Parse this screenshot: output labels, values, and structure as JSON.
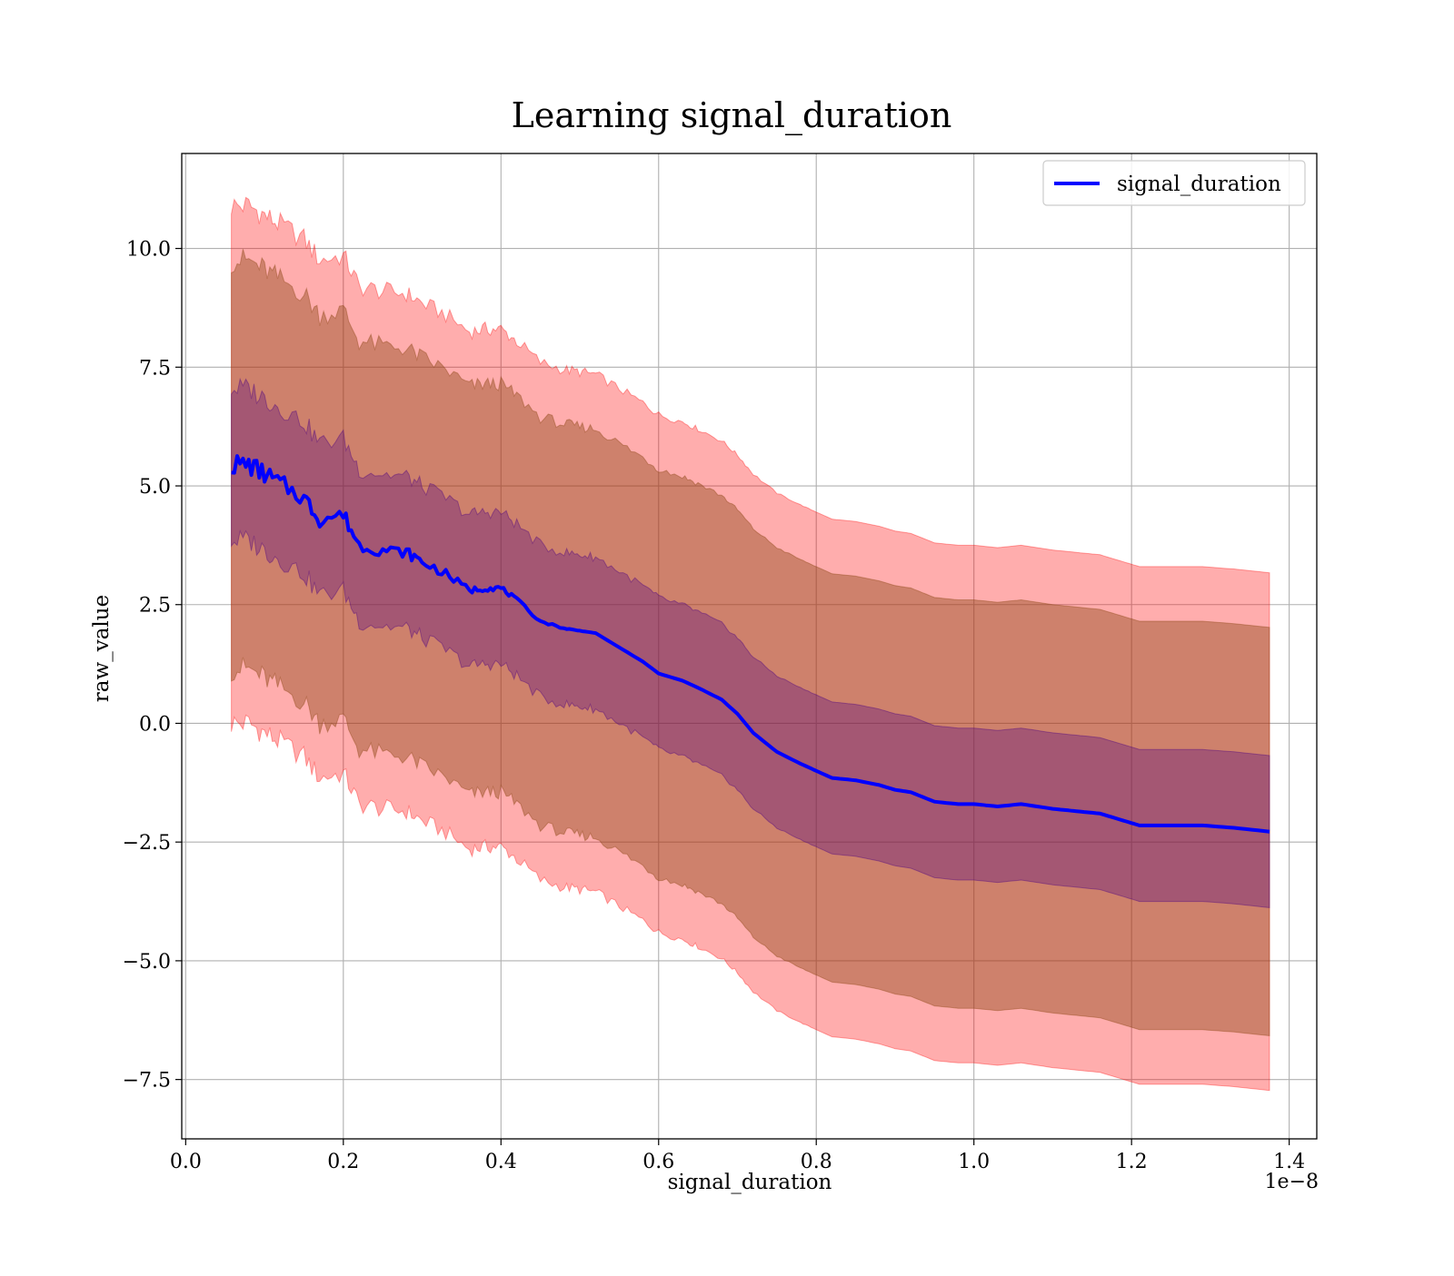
{
  "chart_data": {
    "type": "line",
    "title": "Learning signal_duration",
    "xlabel": "signal_duration",
    "ylabel": "raw_value",
    "x_offset_label": "1e−8",
    "xlim": [
      -0.005,
      1.435
    ],
    "ylim": [
      -8.75,
      12.0
    ],
    "x_ticks": [
      0.0,
      0.2,
      0.4,
      0.6,
      0.8,
      1.0,
      1.2,
      1.4
    ],
    "x_tick_labels": [
      "0.0",
      "0.2",
      "0.4",
      "0.6",
      "0.8",
      "1.0",
      "1.2",
      "1.4"
    ],
    "y_ticks": [
      -7.5,
      -5.0,
      -2.5,
      0.0,
      2.5,
      5.0,
      7.5,
      10.0
    ],
    "y_tick_labels": [
      "−7.5",
      "−5.0",
      "−2.5",
      "0.0",
      "2.5",
      "5.0",
      "7.5",
      "10.0"
    ],
    "grid": true,
    "legend": {
      "position": "top-right",
      "entries": [
        "signal_duration"
      ]
    },
    "colors": {
      "mean_line": "#0000ff",
      "band_outer": "#ff0000",
      "band_mid": "#8b4513",
      "band_inner": "#4b0082"
    },
    "x": [
      0.058,
      0.08,
      0.1,
      0.12,
      0.15,
      0.17,
      0.2,
      0.22,
      0.25,
      0.28,
      0.3,
      0.33,
      0.36,
      0.38,
      0.4,
      0.42,
      0.45,
      0.48,
      0.5,
      0.52,
      0.55,
      0.58,
      0.6,
      0.63,
      0.65,
      0.68,
      0.7,
      0.72,
      0.75,
      0.78,
      0.8,
      0.82,
      0.85,
      0.88,
      0.9,
      0.92,
      0.95,
      0.98,
      1.0,
      1.03,
      1.06,
      1.1,
      1.13,
      1.16,
      1.19,
      1.21,
      1.25,
      1.29,
      1.33,
      1.375
    ],
    "series": [
      {
        "name": "signal_duration",
        "values": [
          5.45,
          5.45,
          5.25,
          5.05,
          4.75,
          4.3,
          4.4,
          3.75,
          3.65,
          3.6,
          3.4,
          3.15,
          2.8,
          2.85,
          2.85,
          2.6,
          2.15,
          2.0,
          1.95,
          1.9,
          1.6,
          1.3,
          1.05,
          0.9,
          0.75,
          0.5,
          0.2,
          -0.2,
          -0.6,
          -0.85,
          -1.0,
          -1.15,
          -1.2,
          -1.3,
          -1.4,
          -1.45,
          -1.65,
          -1.7,
          -1.7,
          -1.75,
          -1.7,
          -1.8,
          -1.85,
          -1.9,
          -2.05,
          -2.15,
          -2.15,
          -2.15,
          -2.2,
          -2.28
        ]
      }
    ],
    "band_offsets": {
      "inner": 1.6,
      "mid": 4.3,
      "outer": 5.45
    }
  }
}
